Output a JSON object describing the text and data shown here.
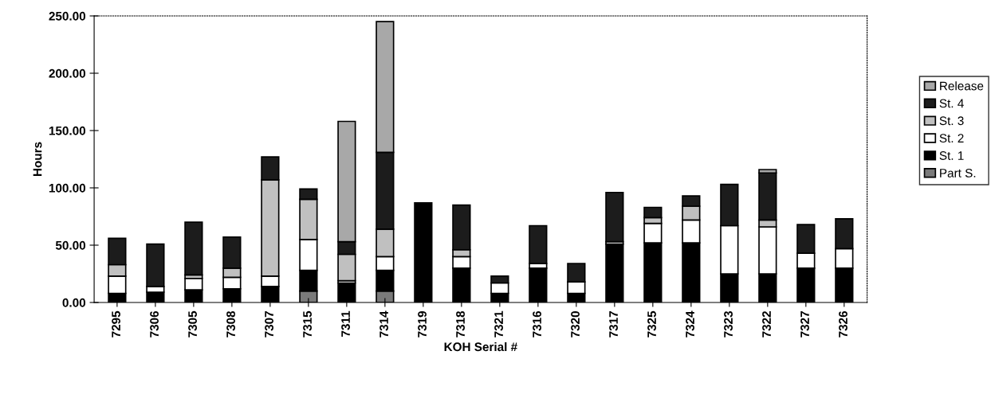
{
  "chart_data": {
    "type": "bar",
    "stacked": true,
    "xlabel": "KOH Serial #",
    "ylabel": "Hours",
    "categories": [
      "7295",
      "7306",
      "7305",
      "7308",
      "7307",
      "7315",
      "7311",
      "7314",
      "7319",
      "7318",
      "7321",
      "7316",
      "7320",
      "7317",
      "7325",
      "7324",
      "7323",
      "7322",
      "7327",
      "7326"
    ],
    "series": [
      {
        "name": "Part S.",
        "color": "#7a7a7a",
        "values": [
          null,
          null,
          null,
          null,
          null,
          10,
          null,
          10,
          null,
          null,
          null,
          null,
          null,
          null,
          null,
          null,
          null,
          null,
          null,
          null
        ]
      },
      {
        "name": "St. 1",
        "color": "#000000",
        "values": [
          8,
          9,
          11,
          12,
          14,
          18,
          17,
          18,
          87,
          30,
          8,
          30,
          8,
          51,
          52,
          52,
          25,
          25,
          30,
          30
        ]
      },
      {
        "name": "St. 2",
        "color": "#ffffff",
        "values": [
          15,
          5,
          10,
          10,
          9,
          27,
          2,
          12,
          null,
          10,
          9,
          4,
          10,
          2,
          17,
          20,
          42,
          41,
          13,
          17
        ]
      },
      {
        "name": "St. 3",
        "color": "#c0c0c0",
        "values": [
          10,
          null,
          3,
          8,
          84,
          35,
          23,
          24,
          null,
          6,
          null,
          null,
          null,
          null,
          5,
          12,
          null,
          6,
          null,
          null
        ]
      },
      {
        "name": "St. 4",
        "color": "#1c1c1c",
        "values": [
          23,
          37,
          46,
          27,
          20,
          9,
          11,
          67,
          null,
          39,
          6,
          33,
          16,
          43,
          9,
          9,
          36,
          41,
          25,
          26
        ]
      },
      {
        "name": "Release",
        "color": "#a8a8a8",
        "values": [
          null,
          null,
          null,
          null,
          null,
          null,
          105,
          114,
          null,
          null,
          null,
          null,
          null,
          null,
          null,
          null,
          null,
          3,
          null,
          null
        ]
      }
    ],
    "ylim": [
      0,
      250
    ],
    "yticks": [
      {
        "value": 0,
        "label": "0.00"
      },
      {
        "value": 50,
        "label": "50.00"
      },
      {
        "value": 100,
        "label": "100.00"
      },
      {
        "value": 150,
        "label": "150.00"
      },
      {
        "value": 200,
        "label": "200.00"
      },
      {
        "value": 250,
        "label": "250.00"
      }
    ],
    "grid": false,
    "legend": "right"
  }
}
